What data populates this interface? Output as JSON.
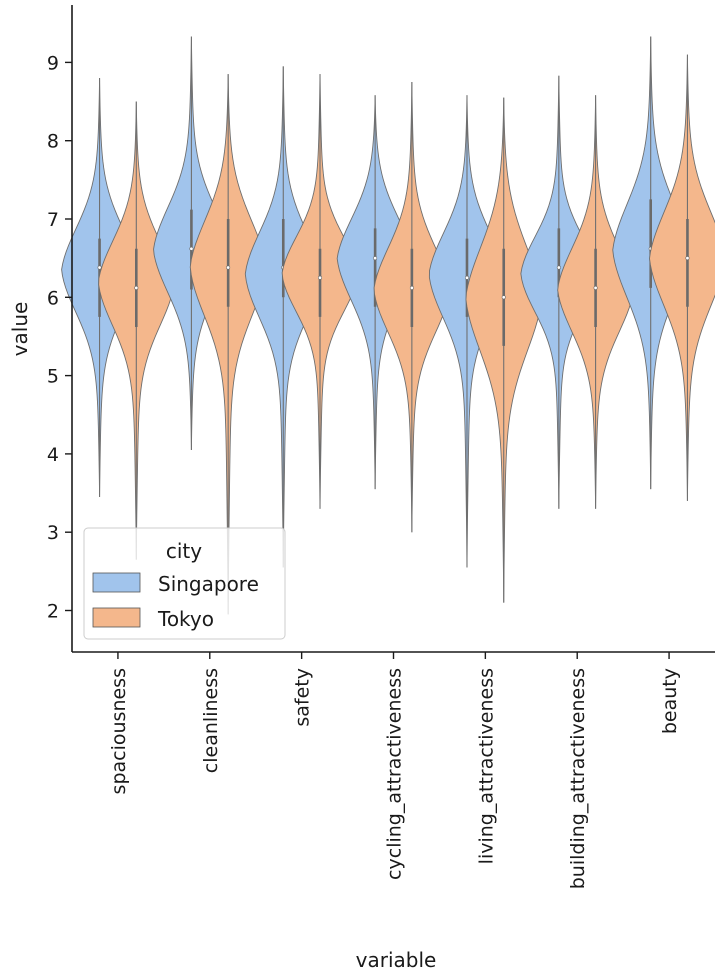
{
  "chart_data": {
    "type": "violin",
    "xlabel": "variable",
    "ylabel": "value",
    "ylim": [
      1.45,
      9.7
    ],
    "yticks": [
      2,
      3,
      4,
      5,
      6,
      7,
      8,
      9
    ],
    "grid": false,
    "legend": {
      "title": "city",
      "placement": "lower-left",
      "entries": [
        "Singapore",
        "Tokyo"
      ]
    },
    "categories": [
      "spaciousness",
      "cleanliness",
      "safety",
      "cycling_attractiveness",
      "living_attractiveness",
      "building_attractiveness",
      "beauty"
    ],
    "series": [
      {
        "name": "Singapore",
        "color": "#a1c4ec",
        "stats": [
          {
            "min": 3.45,
            "max": 8.8,
            "q1": 5.75,
            "median": 6.38,
            "q3": 6.75,
            "mode": 6.35
          },
          {
            "min": 4.05,
            "max": 9.33,
            "q1": 6.1,
            "median": 6.62,
            "q3": 7.12,
            "mode": 6.6
          },
          {
            "min": 2.55,
            "max": 8.95,
            "q1": 6.0,
            "median": 6.38,
            "q3": 7.0,
            "mode": 6.3
          },
          {
            "min": 3.55,
            "max": 8.58,
            "q1": 5.88,
            "median": 6.5,
            "q3": 6.88,
            "mode": 6.5
          },
          {
            "min": 2.55,
            "max": 8.58,
            "q1": 5.75,
            "median": 6.25,
            "q3": 6.75,
            "mode": 6.3
          },
          {
            "min": 3.3,
            "max": 8.83,
            "q1": 6.0,
            "median": 6.38,
            "q3": 6.88,
            "mode": 6.3
          },
          {
            "min": 3.55,
            "max": 9.33,
            "q1": 6.12,
            "median": 6.62,
            "q3": 7.25,
            "mode": 6.6
          }
        ]
      },
      {
        "name": "Tokyo",
        "color": "#f4b78c",
        "stats": [
          {
            "min": 2.65,
            "max": 8.5,
            "q1": 5.62,
            "median": 6.12,
            "q3": 6.62,
            "mode": 6.2
          },
          {
            "min": 1.95,
            "max": 8.85,
            "q1": 5.88,
            "median": 6.38,
            "q3": 7.0,
            "mode": 6.4
          },
          {
            "min": 3.3,
            "max": 8.85,
            "q1": 5.75,
            "median": 6.25,
            "q3": 6.62,
            "mode": 6.3
          },
          {
            "min": 3.0,
            "max": 8.75,
            "q1": 5.62,
            "median": 6.12,
            "q3": 6.62,
            "mode": 6.1
          },
          {
            "min": 2.1,
            "max": 8.55,
            "q1": 5.38,
            "median": 6.0,
            "q3": 6.62,
            "mode": 6.0
          },
          {
            "min": 3.3,
            "max": 8.58,
            "q1": 5.62,
            "median": 6.12,
            "q3": 6.62,
            "mode": 6.1
          },
          {
            "min": 3.4,
            "max": 9.1,
            "q1": 5.88,
            "median": 6.5,
            "q3": 7.0,
            "mode": 6.5
          }
        ]
      }
    ]
  }
}
